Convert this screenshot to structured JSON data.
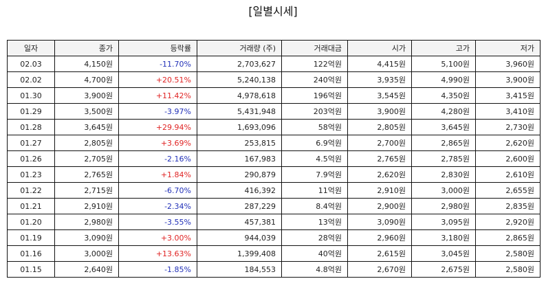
{
  "title": "[일별시세]",
  "colors": {
    "up": "#e02424",
    "down": "#2130b8",
    "border": "#111111",
    "header_bg": "#f4f4f4"
  },
  "headers": [
    "일자",
    "종가",
    "등락률",
    "거래량 (주)",
    "거래대금",
    "시가",
    "고가",
    "저가"
  ],
  "rows": [
    {
      "date": "02.03",
      "close": "4,150원",
      "change": "-11.70%",
      "dir": "down",
      "volume": "2,703,627",
      "value": "122억원",
      "open": "4,415원",
      "high": "5,100원",
      "low": "3,960원"
    },
    {
      "date": "02.02",
      "close": "4,700원",
      "change": "+20.51%",
      "dir": "up",
      "volume": "5,240,138",
      "value": "240억원",
      "open": "3,935원",
      "high": "4,990원",
      "low": "3,900원"
    },
    {
      "date": "01.30",
      "close": "3,900원",
      "change": "+11.42%",
      "dir": "up",
      "volume": "4,978,618",
      "value": "196억원",
      "open": "3,545원",
      "high": "4,350원",
      "low": "3,415원"
    },
    {
      "date": "01.29",
      "close": "3,500원",
      "change": "-3.97%",
      "dir": "down",
      "volume": "5,431,948",
      "value": "203억원",
      "open": "3,900원",
      "high": "4,280원",
      "low": "3,410원"
    },
    {
      "date": "01.28",
      "close": "3,645원",
      "change": "+29.94%",
      "dir": "up",
      "volume": "1,693,096",
      "value": "58억원",
      "open": "2,805원",
      "high": "3,645원",
      "low": "2,730원"
    },
    {
      "date": "01.27",
      "close": "2,805원",
      "change": "+3.69%",
      "dir": "up",
      "volume": "253,815",
      "value": "6.9억원",
      "open": "2,700원",
      "high": "2,865원",
      "low": "2,620원"
    },
    {
      "date": "01.26",
      "close": "2,705원",
      "change": "-2.16%",
      "dir": "down",
      "volume": "167,983",
      "value": "4.5억원",
      "open": "2,765원",
      "high": "2,785원",
      "low": "2,600원"
    },
    {
      "date": "01.23",
      "close": "2,765원",
      "change": "+1.84%",
      "dir": "up",
      "volume": "290,879",
      "value": "7.9억원",
      "open": "2,620원",
      "high": "2,830원",
      "low": "2,610원"
    },
    {
      "date": "01.22",
      "close": "2,715원",
      "change": "-6.70%",
      "dir": "down",
      "volume": "416,392",
      "value": "11억원",
      "open": "2,910원",
      "high": "3,000원",
      "low": "2,655원"
    },
    {
      "date": "01.21",
      "close": "2,910원",
      "change": "-2.34%",
      "dir": "down",
      "volume": "287,229",
      "value": "8.4억원",
      "open": "2,900원",
      "high": "2,980원",
      "low": "2,835원"
    },
    {
      "date": "01.20",
      "close": "2,980원",
      "change": "-3.55%",
      "dir": "down",
      "volume": "457,381",
      "value": "13억원",
      "open": "3,090원",
      "high": "3,095원",
      "low": "2,920원"
    },
    {
      "date": "01.19",
      "close": "3,090원",
      "change": "+3.00%",
      "dir": "up",
      "volume": "944,039",
      "value": "28억원",
      "open": "2,960원",
      "high": "3,180원",
      "low": "2,865원"
    },
    {
      "date": "01.16",
      "close": "3,000원",
      "change": "+13.63%",
      "dir": "up",
      "volume": "1,399,408",
      "value": "40억원",
      "open": "2,615원",
      "high": "3,045원",
      "low": "2,580원"
    },
    {
      "date": "01.15",
      "close": "2,640원",
      "change": "-1.85%",
      "dir": "down",
      "volume": "184,553",
      "value": "4.8억원",
      "open": "2,670원",
      "high": "2,675원",
      "low": "2,580원"
    }
  ]
}
